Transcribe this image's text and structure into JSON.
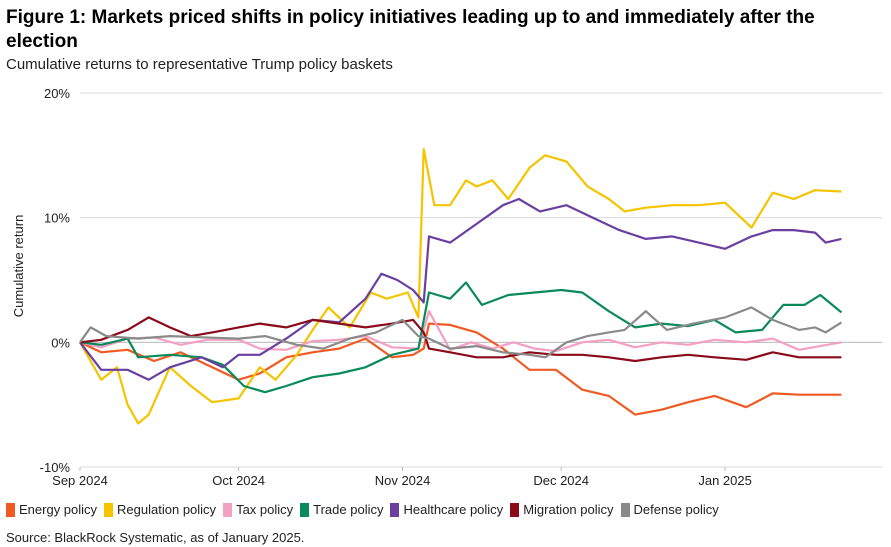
{
  "title": "Figure 1: Markets priced shifts in policy initiatives leading up to and immediately after the election",
  "subtitle": "Cumulative returns to representative Trump policy baskets",
  "source": "Source: BlackRock Systematic, as of January 2025.",
  "chart_data": {
    "type": "line",
    "ylabel": "Cumulative return",
    "ylim": [
      -10,
      20
    ],
    "yticks": [
      {
        "value": 20,
        "label": "20%"
      },
      {
        "value": 10,
        "label": "10%"
      },
      {
        "value": 0,
        "label": "0%"
      },
      {
        "value": -10,
        "label": "-10%"
      }
    ],
    "xrange": [
      "2024-09-01",
      "2025-01-25"
    ],
    "xticks": [
      {
        "date": "2024-09-01",
        "label": "Sep 2024"
      },
      {
        "date": "2024-10-01",
        "label": "Oct 2024"
      },
      {
        "date": "2024-11-01",
        "label": "Nov 2024"
      },
      {
        "date": "2024-12-01",
        "label": "Dec 2024"
      },
      {
        "date": "2025-01-01",
        "label": "Jan 2025"
      }
    ],
    "grid": "horizontal",
    "legend_position": "bottom",
    "series": [
      {
        "name": "Energy policy",
        "color": "#f05a22",
        "points": [
          [
            "2024-09-01",
            0
          ],
          [
            "2024-09-05",
            -0.8
          ],
          [
            "2024-09-10",
            -0.6
          ],
          [
            "2024-09-15",
            -1.5
          ],
          [
            "2024-09-20",
            -0.8
          ],
          [
            "2024-09-25",
            -1.8
          ],
          [
            "2024-10-01",
            -3
          ],
          [
            "2024-10-05",
            -2.5
          ],
          [
            "2024-10-10",
            -1.2
          ],
          [
            "2024-10-15",
            -0.8
          ],
          [
            "2024-10-20",
            -0.5
          ],
          [
            "2024-10-25",
            0.3
          ],
          [
            "2024-10-30",
            -1.2
          ],
          [
            "2024-11-03",
            -1
          ],
          [
            "2024-11-05",
            -0.5
          ],
          [
            "2024-11-06",
            1.5
          ],
          [
            "2024-11-10",
            1.4
          ],
          [
            "2024-11-15",
            0.8
          ],
          [
            "2024-11-20",
            -0.5
          ],
          [
            "2024-11-25",
            -2.2
          ],
          [
            "2024-11-30",
            -2.2
          ],
          [
            "2024-12-05",
            -3.8
          ],
          [
            "2024-12-10",
            -4.3
          ],
          [
            "2024-12-15",
            -5.8
          ],
          [
            "2024-12-20",
            -5.4
          ],
          [
            "2024-12-25",
            -4.8
          ],
          [
            "2024-12-30",
            -4.3
          ],
          [
            "2025-01-05",
            -5.2
          ],
          [
            "2025-01-10",
            -4.1
          ],
          [
            "2025-01-15",
            -4.2
          ],
          [
            "2025-01-23",
            -4.2
          ]
        ]
      },
      {
        "name": "Regulation policy",
        "color": "#f5c400",
        "points": [
          [
            "2024-09-01",
            0
          ],
          [
            "2024-09-05",
            -3
          ],
          [
            "2024-09-08",
            -2
          ],
          [
            "2024-09-10",
            -5
          ],
          [
            "2024-09-12",
            -6.5
          ],
          [
            "2024-09-14",
            -5.8
          ],
          [
            "2024-09-18",
            -2
          ],
          [
            "2024-09-22",
            -3.5
          ],
          [
            "2024-09-26",
            -4.8
          ],
          [
            "2024-10-01",
            -4.5
          ],
          [
            "2024-10-05",
            -2
          ],
          [
            "2024-10-08",
            -3
          ],
          [
            "2024-10-12",
            -1
          ],
          [
            "2024-10-15",
            1
          ],
          [
            "2024-10-18",
            2.8
          ],
          [
            "2024-10-22",
            1.2
          ],
          [
            "2024-10-26",
            4
          ],
          [
            "2024-10-29",
            3.5
          ],
          [
            "2024-11-02",
            4
          ],
          [
            "2024-11-04",
            2
          ],
          [
            "2024-11-05",
            15.5
          ],
          [
            "2024-11-07",
            11
          ],
          [
            "2024-11-10",
            11
          ],
          [
            "2024-11-13",
            13
          ],
          [
            "2024-11-15",
            12.5
          ],
          [
            "2024-11-18",
            13
          ],
          [
            "2024-11-21",
            11.5
          ],
          [
            "2024-11-25",
            14
          ],
          [
            "2024-11-28",
            15
          ],
          [
            "2024-12-02",
            14.5
          ],
          [
            "2024-12-06",
            12.5
          ],
          [
            "2024-12-10",
            11.5
          ],
          [
            "2024-12-13",
            10.5
          ],
          [
            "2024-12-17",
            10.8
          ],
          [
            "2024-12-22",
            11
          ],
          [
            "2024-12-27",
            11
          ],
          [
            "2025-01-01",
            11.2
          ],
          [
            "2025-01-06",
            9.2
          ],
          [
            "2025-01-10",
            12
          ],
          [
            "2025-01-14",
            11.5
          ],
          [
            "2025-01-18",
            12.2
          ],
          [
            "2025-01-23",
            12.1
          ]
        ]
      },
      {
        "name": "Tax policy",
        "color": "#f4a0c4",
        "points": [
          [
            "2024-09-01",
            0
          ],
          [
            "2024-09-05",
            -0.4
          ],
          [
            "2024-09-10",
            0.3
          ],
          [
            "2024-09-15",
            0.4
          ],
          [
            "2024-09-20",
            -0.2
          ],
          [
            "2024-09-25",
            0.2
          ],
          [
            "2024-10-01",
            0.2
          ],
          [
            "2024-10-05",
            -0.5
          ],
          [
            "2024-10-10",
            -0.6
          ],
          [
            "2024-10-15",
            0.1
          ],
          [
            "2024-10-20",
            0.2
          ],
          [
            "2024-10-25",
            0.5
          ],
          [
            "2024-10-30",
            -0.4
          ],
          [
            "2024-11-04",
            -0.5
          ],
          [
            "2024-11-06",
            2.5
          ],
          [
            "2024-11-10",
            -0.6
          ],
          [
            "2024-11-14",
            0
          ],
          [
            "2024-11-18",
            -0.5
          ],
          [
            "2024-11-22",
            0
          ],
          [
            "2024-11-26",
            -0.5
          ],
          [
            "2024-11-30",
            -0.7
          ],
          [
            "2024-12-05",
            0
          ],
          [
            "2024-12-10",
            0.2
          ],
          [
            "2024-12-15",
            -0.4
          ],
          [
            "2024-12-20",
            0
          ],
          [
            "2024-12-25",
            -0.2
          ],
          [
            "2024-12-30",
            0.2
          ],
          [
            "2025-01-05",
            0
          ],
          [
            "2025-01-10",
            0.3
          ],
          [
            "2025-01-15",
            -0.6
          ],
          [
            "2025-01-23",
            0
          ]
        ]
      },
      {
        "name": "Trade policy",
        "color": "#0a8a5a",
        "points": [
          [
            "2024-09-01",
            0
          ],
          [
            "2024-09-05",
            -0.2
          ],
          [
            "2024-09-10",
            0.3
          ],
          [
            "2024-09-12",
            -1.2
          ],
          [
            "2024-09-18",
            -1
          ],
          [
            "2024-09-24",
            -1.2
          ],
          [
            "2024-09-28",
            -1.8
          ],
          [
            "2024-10-02",
            -3.5
          ],
          [
            "2024-10-06",
            -4
          ],
          [
            "2024-10-10",
            -3.5
          ],
          [
            "2024-10-15",
            -2.8
          ],
          [
            "2024-10-20",
            -2.5
          ],
          [
            "2024-10-25",
            -2
          ],
          [
            "2024-10-30",
            -1
          ],
          [
            "2024-11-04",
            -0.5
          ],
          [
            "2024-11-06",
            4
          ],
          [
            "2024-11-10",
            3.5
          ],
          [
            "2024-11-13",
            4.8
          ],
          [
            "2024-11-16",
            3
          ],
          [
            "2024-11-21",
            3.8
          ],
          [
            "2024-11-26",
            4
          ],
          [
            "2024-12-01",
            4.2
          ],
          [
            "2024-12-05",
            4
          ],
          [
            "2024-12-10",
            2.5
          ],
          [
            "2024-12-15",
            1.2
          ],
          [
            "2024-12-20",
            1.5
          ],
          [
            "2024-12-25",
            1.3
          ],
          [
            "2024-12-30",
            1.8
          ],
          [
            "2025-01-03",
            0.8
          ],
          [
            "2025-01-08",
            1
          ],
          [
            "2025-01-12",
            3
          ],
          [
            "2025-01-16",
            3
          ],
          [
            "2025-01-19",
            3.8
          ],
          [
            "2025-01-23",
            2.4
          ]
        ]
      },
      {
        "name": "Healthcare policy",
        "color": "#6a3fa0",
        "points": [
          [
            "2024-09-01",
            0
          ],
          [
            "2024-09-05",
            -2.2
          ],
          [
            "2024-09-10",
            -2.2
          ],
          [
            "2024-09-14",
            -3
          ],
          [
            "2024-09-18",
            -2
          ],
          [
            "2024-09-24",
            -1.2
          ],
          [
            "2024-09-28",
            -2
          ],
          [
            "2024-10-01",
            -1
          ],
          [
            "2024-10-05",
            -1
          ],
          [
            "2024-10-10",
            0.3
          ],
          [
            "2024-10-15",
            1.8
          ],
          [
            "2024-10-20",
            1.6
          ],
          [
            "2024-10-25",
            3.5
          ],
          [
            "2024-10-28",
            5.5
          ],
          [
            "2024-10-31",
            5
          ],
          [
            "2024-11-03",
            4.2
          ],
          [
            "2024-11-05",
            3.2
          ],
          [
            "2024-11-06",
            8.5
          ],
          [
            "2024-11-10",
            8
          ],
          [
            "2024-11-15",
            9.5
          ],
          [
            "2024-11-20",
            11
          ],
          [
            "2024-11-23",
            11.5
          ],
          [
            "2024-11-27",
            10.5
          ],
          [
            "2024-12-02",
            11
          ],
          [
            "2024-12-07",
            10
          ],
          [
            "2024-12-12",
            9
          ],
          [
            "2024-12-17",
            8.3
          ],
          [
            "2024-12-22",
            8.5
          ],
          [
            "2024-12-27",
            8
          ],
          [
            "2025-01-01",
            7.5
          ],
          [
            "2025-01-06",
            8.5
          ],
          [
            "2025-01-10",
            9
          ],
          [
            "2025-01-14",
            9
          ],
          [
            "2025-01-18",
            8.8
          ],
          [
            "2025-01-20",
            8
          ],
          [
            "2025-01-23",
            8.3
          ]
        ]
      },
      {
        "name": "Migration policy",
        "color": "#8b0a1a",
        "points": [
          [
            "2024-09-01",
            0
          ],
          [
            "2024-09-05",
            0.2
          ],
          [
            "2024-09-10",
            1
          ],
          [
            "2024-09-14",
            2
          ],
          [
            "2024-09-18",
            1.2
          ],
          [
            "2024-09-22",
            0.5
          ],
          [
            "2024-09-26",
            0.8
          ],
          [
            "2024-10-01",
            1.2
          ],
          [
            "2024-10-05",
            1.5
          ],
          [
            "2024-10-10",
            1.2
          ],
          [
            "2024-10-15",
            1.8
          ],
          [
            "2024-10-20",
            1.5
          ],
          [
            "2024-10-25",
            1.2
          ],
          [
            "2024-10-30",
            1.5
          ],
          [
            "2024-11-03",
            1.8
          ],
          [
            "2024-11-05",
            0.8
          ],
          [
            "2024-11-06",
            -0.5
          ],
          [
            "2024-11-10",
            -0.8
          ],
          [
            "2024-11-15",
            -1.2
          ],
          [
            "2024-11-20",
            -1.2
          ],
          [
            "2024-11-25",
            -0.8
          ],
          [
            "2024-11-30",
            -1
          ],
          [
            "2024-12-05",
            -1
          ],
          [
            "2024-12-10",
            -1.2
          ],
          [
            "2024-12-15",
            -1.5
          ],
          [
            "2024-12-20",
            -1.2
          ],
          [
            "2024-12-25",
            -1
          ],
          [
            "2024-12-30",
            -1.2
          ],
          [
            "2025-01-05",
            -1.4
          ],
          [
            "2025-01-10",
            -0.8
          ],
          [
            "2025-01-15",
            -1.2
          ],
          [
            "2025-01-23",
            -1.2
          ]
        ]
      },
      {
        "name": "Defense policy",
        "color": "#8a8a8a",
        "points": [
          [
            "2024-09-01",
            0
          ],
          [
            "2024-09-03",
            1.2
          ],
          [
            "2024-09-06",
            0.5
          ],
          [
            "2024-09-12",
            0.3
          ],
          [
            "2024-09-18",
            0.5
          ],
          [
            "2024-09-24",
            0.4
          ],
          [
            "2024-10-01",
            0.3
          ],
          [
            "2024-10-06",
            0.5
          ],
          [
            "2024-10-12",
            -0.2
          ],
          [
            "2024-10-17",
            -0.5
          ],
          [
            "2024-10-22",
            0.3
          ],
          [
            "2024-10-27",
            0.8
          ],
          [
            "2024-11-01",
            1.8
          ],
          [
            "2024-11-04",
            0.5
          ],
          [
            "2024-11-06",
            0.3
          ],
          [
            "2024-11-10",
            -0.5
          ],
          [
            "2024-11-15",
            -0.3
          ],
          [
            "2024-11-20",
            -0.8
          ],
          [
            "2024-11-25",
            -1
          ],
          [
            "2024-11-28",
            -1.2
          ],
          [
            "2024-12-02",
            0
          ],
          [
            "2024-12-06",
            0.5
          ],
          [
            "2024-12-10",
            0.8
          ],
          [
            "2024-12-13",
            1
          ],
          [
            "2024-12-17",
            2.5
          ],
          [
            "2024-12-21",
            1
          ],
          [
            "2024-12-26",
            1.5
          ],
          [
            "2025-01-01",
            2
          ],
          [
            "2025-01-06",
            2.8
          ],
          [
            "2025-01-10",
            1.8
          ],
          [
            "2025-01-15",
            1
          ],
          [
            "2025-01-18",
            1.2
          ],
          [
            "2025-01-20",
            0.8
          ],
          [
            "2025-01-23",
            1.6
          ]
        ]
      }
    ]
  }
}
